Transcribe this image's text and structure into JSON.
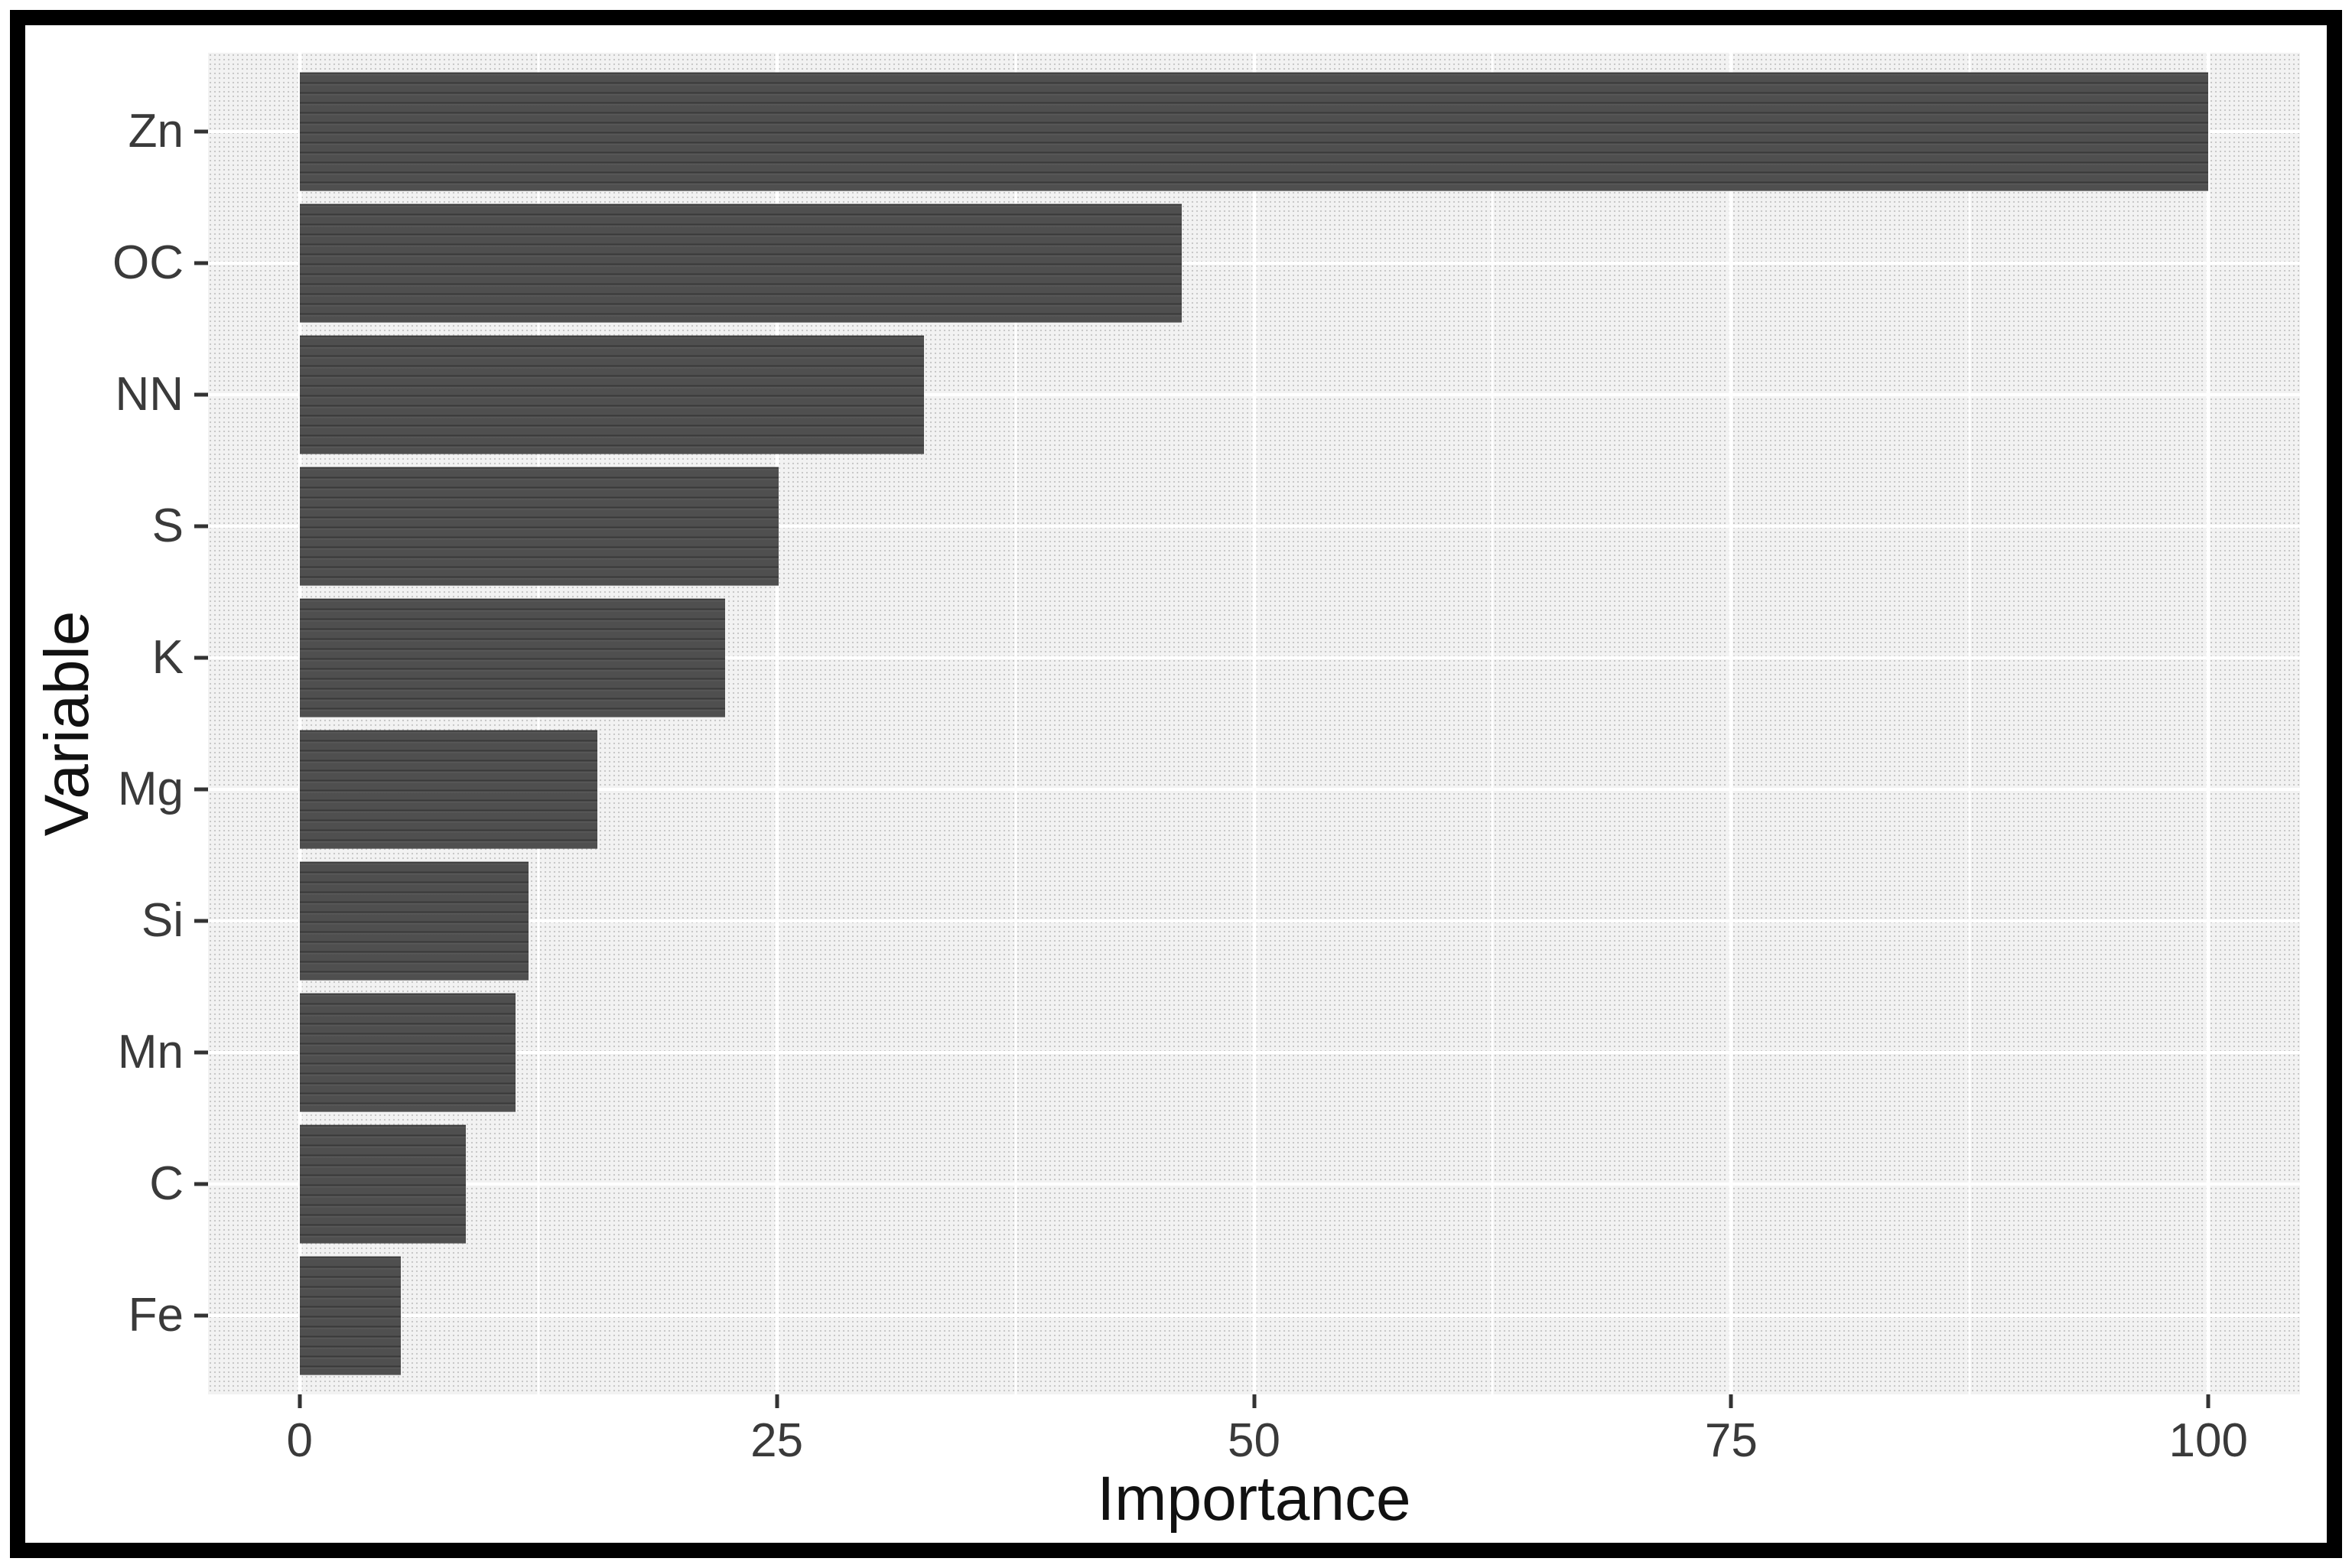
{
  "chart_data": {
    "type": "bar",
    "orientation": "horizontal",
    "title": "",
    "xlabel": "Importance",
    "ylabel": "Variable",
    "categories": [
      "Zn",
      "OC",
      "NN",
      "S",
      "K",
      "Mg",
      "Si",
      "Mn",
      "C",
      "Fe"
    ],
    "values": [
      100.0,
      46.2,
      32.7,
      25.1,
      22.3,
      15.6,
      12.0,
      11.3,
      8.7,
      5.3
    ],
    "x_ticks": [
      0,
      25,
      50,
      75,
      100
    ],
    "x_minor_ticks": [
      12.5,
      37.5,
      62.5,
      87.5
    ],
    "xlim": [
      -4.8,
      104.8
    ],
    "y_expansion": 0.6,
    "bar_width_fraction": 0.9,
    "grid": true,
    "legend_position": "none",
    "colors": {
      "bar_fill": "#4f4f4f",
      "panel_background": "#f2f2f2",
      "panel_dot": "#c8c8c8",
      "gridline": "#ffffff",
      "axis_text": "#3a3a3a",
      "axis_title": "#111111",
      "tick_mark": "#333333",
      "figure_border": "#000000"
    }
  }
}
